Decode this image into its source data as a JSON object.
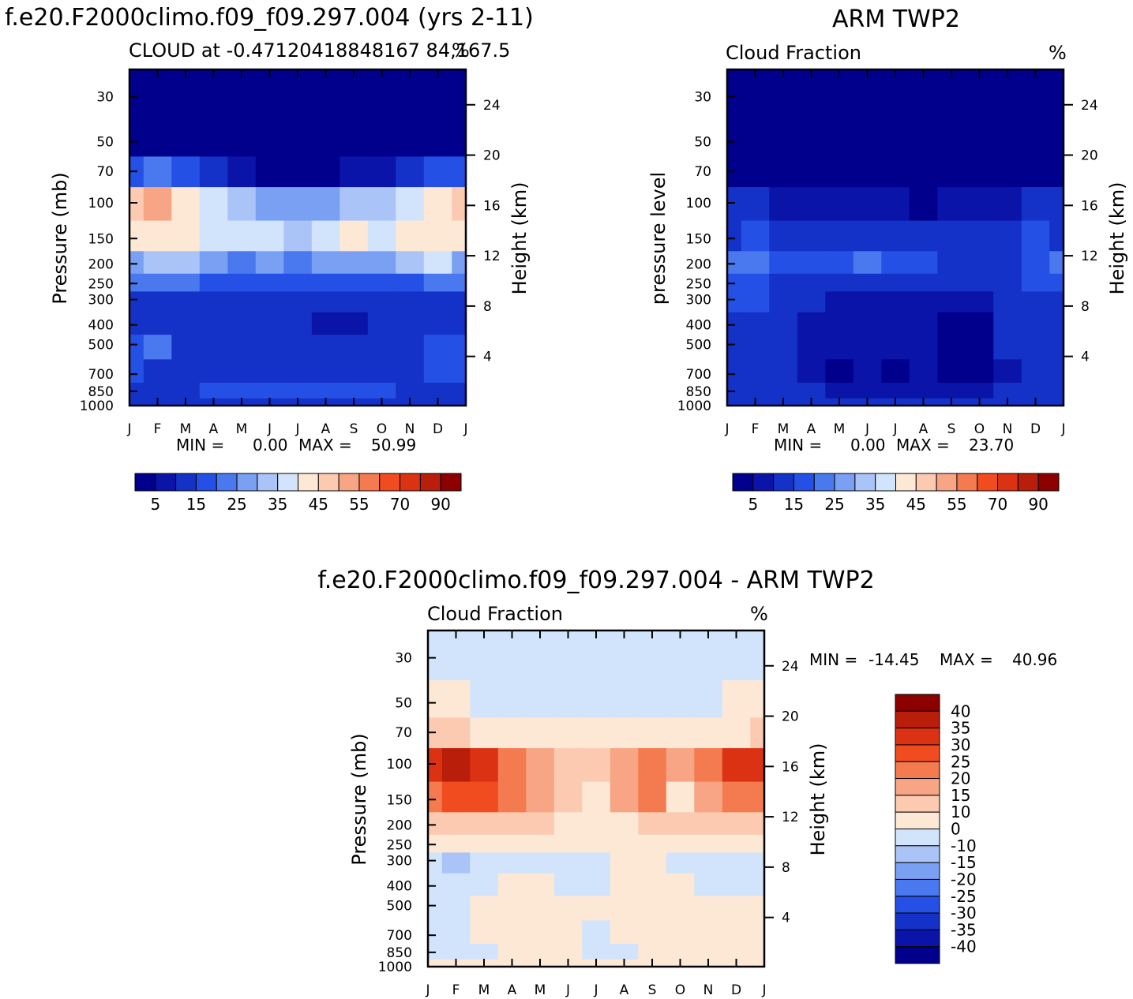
{
  "page_title": "",
  "colors": {
    "scale": [
      "#00008c",
      "#0a14a8",
      "#1432c8",
      "#2550e6",
      "#4a78ee",
      "#7aa0f4",
      "#aac4f8",
      "#d2e4fb",
      "#fde8d6",
      "#fbcab0",
      "#f7a585",
      "#f47a50",
      "#f04c20",
      "#dc3214",
      "#b81e0a",
      "#8c0000"
    ],
    "diff": [
      "#00008c",
      "#0a14a8",
      "#1432c8",
      "#2550e6",
      "#4a78ee",
      "#7aa0f4",
      "#aac4f8",
      "#d2e4fb",
      "#fde8d6",
      "#fbcab0",
      "#f7a585",
      "#f47a50",
      "#f04c20",
      "#dc3214",
      "#b81e0a",
      "#8c0000"
    ]
  },
  "chart_data": [
    {
      "type": "heatmap",
      "id": "model",
      "title": "f.e20.F2000climo.f09_f09.297.004 (yrs 2-11)",
      "subtitle_left": "CLOUD at -0.47120418848167 84,167.5",
      "subtitle_right": "%",
      "ylabel": "Pressure (mb)",
      "ylabel_right": "Height (km)",
      "months": [
        "J",
        "F",
        "M",
        "A",
        "M",
        "J",
        "J",
        "A",
        "S",
        "O",
        "N",
        "D",
        "J"
      ],
      "pressure_ticks": [
        30,
        50,
        70,
        100,
        150,
        200,
        250,
        300,
        400,
        500,
        700,
        850,
        1000
      ],
      "height_ticks": [
        24,
        20,
        16,
        12,
        8,
        4
      ],
      "stats": {
        "min_label": "MIN =",
        "min": "0.00",
        "max_label": "MAX =",
        "max": "50.99"
      },
      "colorbar_labels": [
        "5",
        "15",
        "25",
        "35",
        "45",
        "55",
        "70",
        "90"
      ],
      "profile": [
        [
          2,
          2,
          2,
          2,
          2,
          2,
          2,
          2,
          2,
          2,
          2,
          2,
          2
        ],
        [
          2,
          2,
          2,
          2,
          2,
          2,
          2,
          2,
          2,
          2,
          2,
          2,
          2
        ],
        [
          18,
          20,
          16,
          12,
          8,
          4,
          3,
          4,
          6,
          8,
          12,
          16,
          18
        ],
        [
          48,
          50,
          44,
          36,
          30,
          28,
          26,
          28,
          30,
          32,
          38,
          44,
          48
        ],
        [
          40,
          42,
          40,
          38,
          36,
          38,
          32,
          36,
          40,
          38,
          40,
          42,
          40
        ],
        [
          28,
          30,
          30,
          28,
          24,
          26,
          22,
          26,
          28,
          28,
          30,
          36,
          28
        ],
        [
          20,
          20,
          20,
          18,
          16,
          16,
          16,
          16,
          16,
          16,
          18,
          20,
          20
        ],
        [
          12,
          12,
          12,
          12,
          12,
          12,
          12,
          12,
          12,
          12,
          12,
          14,
          12
        ],
        [
          14,
          12,
          12,
          10,
          10,
          10,
          10,
          6,
          6,
          10,
          10,
          12,
          10
        ],
        [
          16,
          20,
          14,
          14,
          14,
          14,
          14,
          14,
          14,
          14,
          14,
          18,
          16
        ],
        [
          16,
          14,
          12,
          12,
          12,
          12,
          12,
          12,
          12,
          12,
          14,
          16,
          16
        ],
        [
          14,
          14,
          14,
          16,
          16,
          16,
          16,
          16,
          16,
          16,
          14,
          14,
          14
        ],
        [
          10,
          10,
          10,
          10,
          10,
          10,
          10,
          10,
          10,
          10,
          10,
          10,
          10
        ]
      ]
    },
    {
      "type": "heatmap",
      "id": "obs",
      "title": "ARM TWP2",
      "subtitle_left": "Cloud Fraction",
      "subtitle_right": "%",
      "ylabel": "pressure level",
      "ylabel_right": "Height (km)",
      "months": [
        "J",
        "F",
        "M",
        "A",
        "M",
        "J",
        "J",
        "A",
        "S",
        "O",
        "N",
        "D",
        "J"
      ],
      "pressure_ticks": [
        30,
        50,
        70,
        100,
        150,
        200,
        250,
        300,
        400,
        500,
        700,
        850,
        1000
      ],
      "height_ticks": [
        24,
        20,
        16,
        12,
        8,
        4
      ],
      "stats": {
        "min_label": "MIN =",
        "min": "0.00",
        "max_label": "MAX =",
        "max": "23.70"
      },
      "colorbar_labels": [
        "5",
        "15",
        "25",
        "35",
        "45",
        "55",
        "70",
        "90"
      ],
      "profile": [
        [
          2,
          2,
          2,
          2,
          2,
          2,
          2,
          2,
          2,
          2,
          2,
          2,
          2
        ],
        [
          2,
          2,
          2,
          2,
          2,
          2,
          2,
          2,
          2,
          2,
          2,
          2,
          2
        ],
        [
          4,
          3,
          2,
          2,
          2,
          2,
          2,
          2,
          2,
          2,
          2,
          2,
          4
        ],
        [
          12,
          10,
          8,
          6,
          5,
          6,
          6,
          4,
          5,
          6,
          8,
          10,
          12
        ],
        [
          14,
          16,
          14,
          12,
          12,
          14,
          14,
          14,
          12,
          14,
          14,
          16,
          14
        ],
        [
          20,
          22,
          16,
          16,
          18,
          20,
          18,
          16,
          14,
          14,
          14,
          18,
          20
        ],
        [
          18,
          18,
          14,
          14,
          14,
          14,
          14,
          14,
          14,
          14,
          14,
          16,
          16
        ],
        [
          16,
          16,
          14,
          10,
          8,
          8,
          8,
          8,
          6,
          6,
          12,
          14,
          14
        ],
        [
          14,
          14,
          12,
          8,
          6,
          6,
          6,
          6,
          2,
          2,
          10,
          12,
          12
        ],
        [
          14,
          14,
          12,
          6,
          6,
          6,
          6,
          6,
          2,
          2,
          10,
          12,
          12
        ],
        [
          12,
          12,
          10,
          6,
          4,
          6,
          4,
          6,
          2,
          2,
          8,
          10,
          10
        ],
        [
          14,
          14,
          14,
          10,
          8,
          8,
          8,
          8,
          6,
          6,
          10,
          12,
          12
        ],
        [
          10,
          10,
          10,
          10,
          10,
          10,
          10,
          10,
          10,
          10,
          10,
          10,
          10
        ]
      ]
    },
    {
      "type": "heatmap",
      "id": "diff",
      "title": "f.e20.F2000climo.f09_f09.297.004 - ARM TWP2",
      "subtitle_left": "Cloud Fraction",
      "subtitle_right": "%",
      "ylabel": "Pressure (mb)",
      "ylabel_right": "Height (km)",
      "months": [
        "J",
        "F",
        "M",
        "A",
        "M",
        "J",
        "J",
        "A",
        "S",
        "O",
        "N",
        "D",
        "J"
      ],
      "pressure_ticks": [
        30,
        50,
        70,
        100,
        150,
        200,
        250,
        300,
        400,
        500,
        700,
        850,
        1000
      ],
      "height_ticks": [
        24,
        20,
        16,
        12,
        8,
        4
      ],
      "stats": {
        "min_label": "MIN =",
        "min": "-14.45",
        "max_label": "MAX =",
        "max": "40.96"
      },
      "colorbar_labels": [
        "40",
        "35",
        "30",
        "25",
        "20",
        "15",
        "10",
        "0",
        "-10",
        "-15",
        "-20",
        "-25",
        "-30",
        "-35",
        "-40"
      ],
      "profile": [
        [
          -5,
          -5,
          -5,
          -5,
          -5,
          -5,
          -5,
          -5,
          -5,
          -5,
          -5,
          -5,
          -5
        ],
        [
          2,
          2,
          -5,
          -5,
          -5,
          -5,
          -5,
          -5,
          -5,
          -5,
          -5,
          2,
          2
        ],
        [
          12,
          14,
          6,
          4,
          2,
          2,
          2,
          2,
          2,
          2,
          4,
          8,
          12
        ],
        [
          32,
          38,
          32,
          22,
          16,
          14,
          12,
          18,
          20,
          18,
          22,
          30,
          32
        ],
        [
          24,
          26,
          26,
          20,
          16,
          12,
          2,
          16,
          22,
          8,
          18,
          24,
          24
        ],
        [
          14,
          14,
          12,
          12,
          10,
          8,
          6,
          8,
          10,
          10,
          12,
          14,
          14
        ],
        [
          6,
          6,
          6,
          6,
          6,
          6,
          6,
          6,
          6,
          6,
          6,
          6,
          6
        ],
        [
          -5,
          -12,
          -5,
          -5,
          -5,
          -5,
          -5,
          2,
          2,
          -5,
          -5,
          -5,
          -5
        ],
        [
          -5,
          -5,
          -5,
          2,
          2,
          -5,
          -5,
          2,
          2,
          2,
          -5,
          -5,
          -5
        ],
        [
          -5,
          -5,
          2,
          2,
          2,
          2,
          2,
          2,
          2,
          2,
          2,
          2,
          2
        ],
        [
          -5,
          -5,
          2,
          2,
          2,
          2,
          -5,
          2,
          2,
          2,
          2,
          2,
          2
        ],
        [
          -5,
          -5,
          -5,
          2,
          2,
          2,
          -5,
          -5,
          2,
          2,
          2,
          2,
          2
        ],
        [
          2,
          2,
          2,
          2,
          2,
          2,
          2,
          2,
          2,
          2,
          2,
          2,
          2
        ]
      ]
    }
  ]
}
